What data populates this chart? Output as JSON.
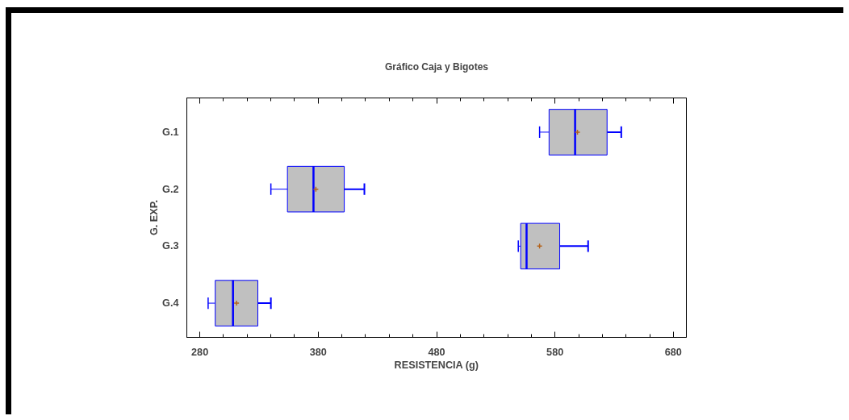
{
  "chart_data": {
    "type": "box",
    "title": "Gráfico Caja y Bigotes",
    "xlabel": "RESISTENCIA (g)",
    "ylabel": "G. EXP.",
    "orientation": "horizontal",
    "grid": false,
    "categories": [
      "G.1",
      "G.2",
      "G.3",
      "G.4"
    ],
    "color": "#c0c0c0",
    "boxes": [
      {
        "low": 567,
        "q1": 575,
        "median": 597,
        "q3": 624,
        "high": 636,
        "mean": 599
      },
      {
        "low": 340,
        "q1": 354,
        "median": 376,
        "q3": 402,
        "high": 419,
        "mean": 378
      },
      {
        "low": 549,
        "q1": 551,
        "median": 556,
        "q3": 584,
        "high": 608,
        "mean": 567
      },
      {
        "low": 287,
        "q1": 293,
        "median": 308,
        "q3": 329,
        "high": 340,
        "mean": 311
      }
    ],
    "xlim": [
      269,
      691
    ],
    "xticks": [
      280,
      {
        "value": 300,
        "label": null
      },
      {
        "value": 320,
        "label": null
      },
      {
        "value": 340,
        "label": null
      },
      {
        "value": 360,
        "label": null
      },
      380,
      {
        "value": 400,
        "label": null
      },
      {
        "value": 420,
        "label": null
      },
      {
        "value": 440,
        "label": null
      },
      {
        "value": 460,
        "label": null
      },
      480,
      {
        "value": 500,
        "label": null
      },
      {
        "value": 520,
        "label": null
      },
      {
        "value": 540,
        "label": null
      },
      {
        "value": 560,
        "label": null
      },
      580,
      {
        "value": 600,
        "label": null
      },
      {
        "value": 620,
        "label": null
      },
      {
        "value": 640,
        "label": null
      },
      {
        "value": 660,
        "label": null
      },
      680
    ]
  }
}
